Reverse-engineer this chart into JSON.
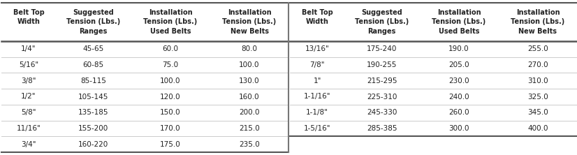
{
  "left_table": {
    "belt_top_width": [
      "1/4\"",
      "5/16\"",
      "3/8\"",
      "1/2\"",
      "5/8\"",
      "11/16\"",
      "3/4\""
    ],
    "suggested_tension": [
      "45-65",
      "60-85",
      "85-115",
      "105-145",
      "135-185",
      "155-200",
      "160-220"
    ],
    "used_belts": [
      "60.0",
      "75.0",
      "100.0",
      "120.0",
      "150.0",
      "170.0",
      "175.0"
    ],
    "new_belts": [
      "80.0",
      "100.0",
      "130.0",
      "160.0",
      "200.0",
      "215.0",
      "235.0"
    ]
  },
  "right_table": {
    "belt_top_width": [
      "13/16\"",
      "7/8\"",
      "1\"",
      "1-1/16\"",
      "1-1/8\"",
      "1-5/16\""
    ],
    "suggested_tension": [
      "175-240",
      "190-255",
      "215-295",
      "225-310",
      "245-330",
      "285-385"
    ],
    "used_belts": [
      "190.0",
      "205.0",
      "230.0",
      "240.0",
      "260.0",
      "300.0"
    ],
    "new_belts": [
      "255.0",
      "270.0",
      "310.0",
      "325.0",
      "345.0",
      "400.0"
    ]
  },
  "col_headers_line1": [
    "Belt Top",
    "Suggested",
    "Installation",
    "Installation"
  ],
  "col_headers_line2": [
    "Width",
    "Tension (Lbs.)",
    "Tension (Lbs.)",
    "Tension (Lbs.)"
  ],
  "col_headers_line3": [
    "",
    "Ranges",
    "Used Belts",
    "New Belts"
  ],
  "bg_color": "#ffffff",
  "border_color": "#555555",
  "row_sep_color": "#cccccc",
  "text_color": "#222222",
  "mid_line_color": "#777777"
}
